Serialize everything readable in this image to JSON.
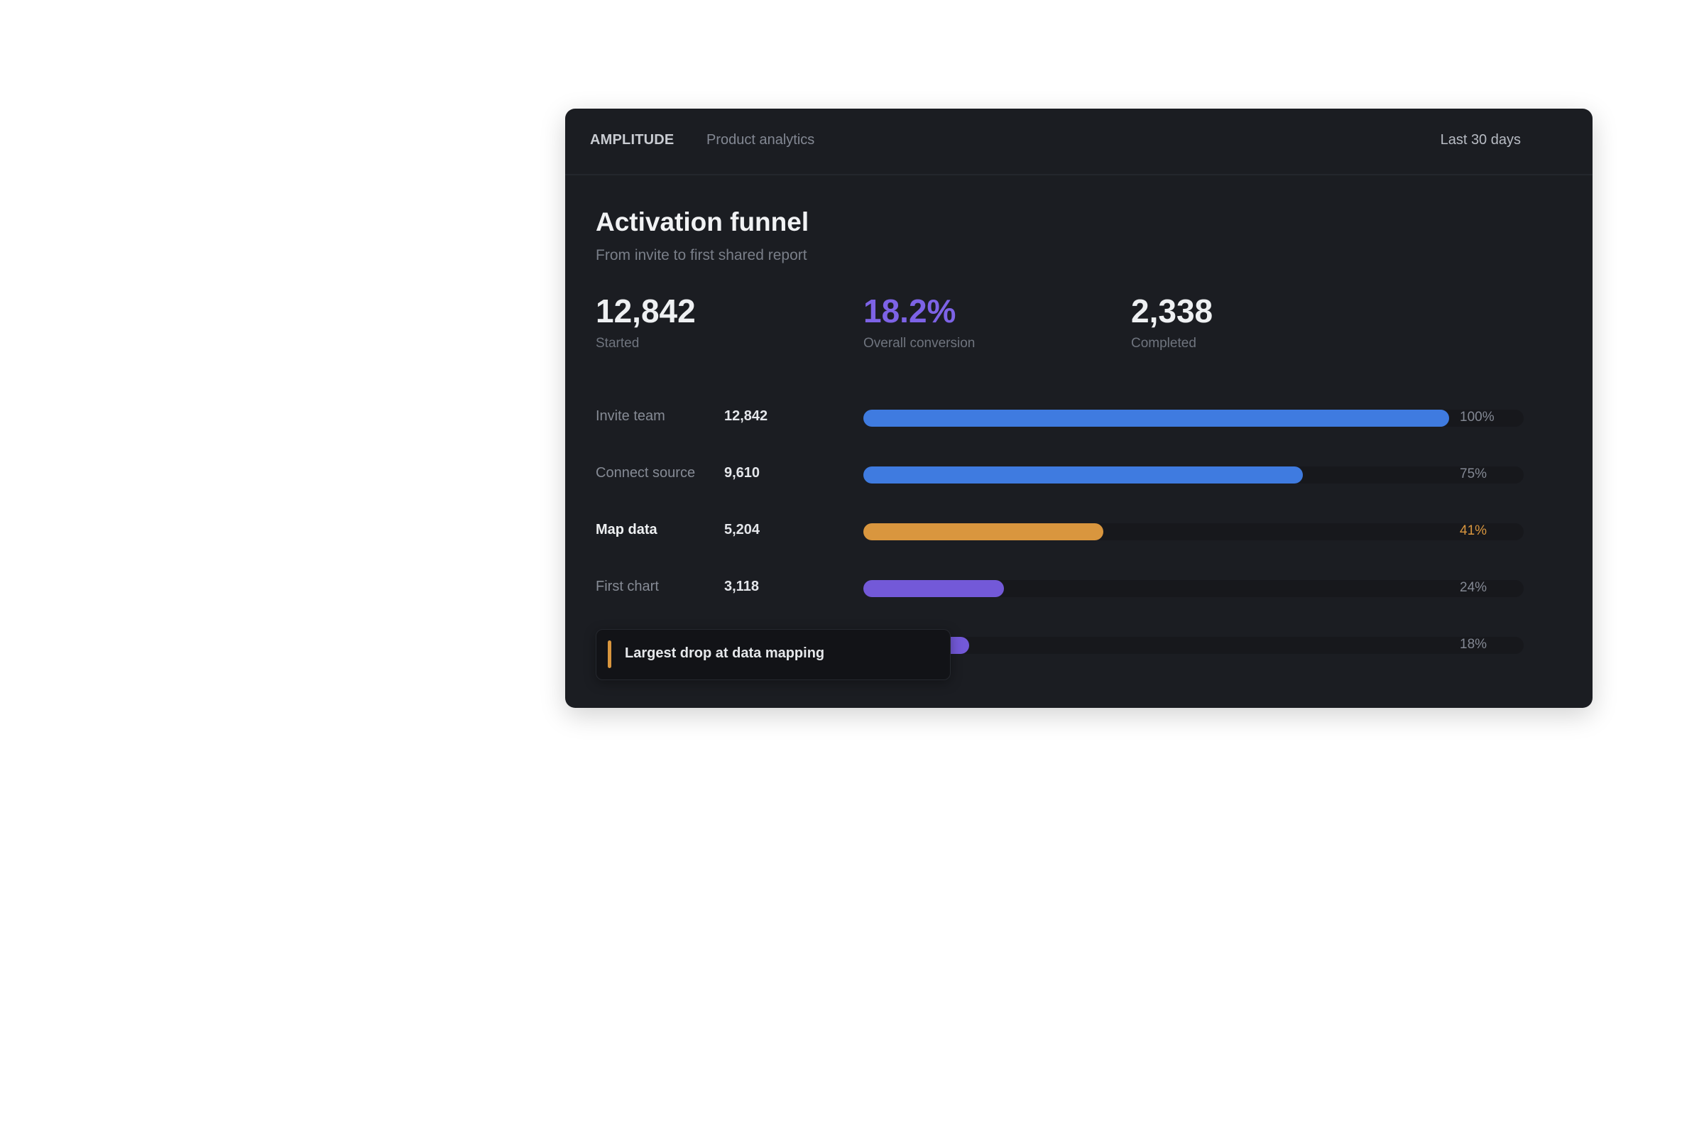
{
  "header": {
    "brand": "AMPLITUDE",
    "section": "Product analytics",
    "date_range": "Last 30 days"
  },
  "report": {
    "title": "Activation funnel",
    "subtitle": "From invite to first shared report"
  },
  "stats": [
    {
      "value": "12,842",
      "label": "Started"
    },
    {
      "value": "18.2%",
      "label": "Overall conversion"
    },
    {
      "value": "2,338",
      "label": "Completed"
    }
  ],
  "funnel": {
    "steps": [
      {
        "name": "Invite team",
        "count": "12,842",
        "pct_label": "100%",
        "value": 100
      },
      {
        "name": "Connect source",
        "count": "9,610",
        "pct_label": "75%",
        "value": 75
      },
      {
        "name": "Map data",
        "count": "5,204",
        "pct_label": "41%",
        "value": 41
      },
      {
        "name": "First chart",
        "count": "3,118",
        "pct_label": "24%",
        "value": 24
      },
      {
        "name": "",
        "count": "",
        "pct_label": "18%",
        "value": 18
      }
    ]
  },
  "callout": {
    "text": "Largest drop at data mapping"
  },
  "colors": {
    "blue": "#3f7be0",
    "orange": "#d9963e",
    "purple": "#7359d8",
    "text_muted": "#838893"
  }
}
